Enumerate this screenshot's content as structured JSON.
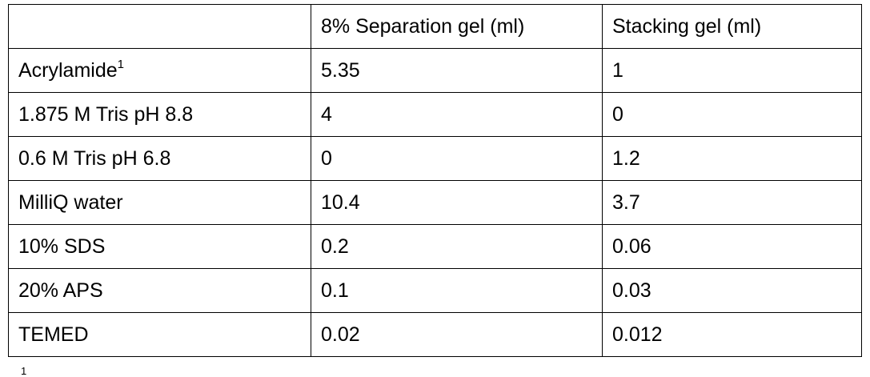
{
  "table": {
    "columns": [
      "8% Separation gel (ml)",
      "Stacking gel (ml)"
    ],
    "rows": [
      {
        "label": "Acrylamide",
        "note": "1",
        "values": [
          5.35,
          1
        ]
      },
      {
        "label": "1.875 M Tris pH 8.8",
        "values": [
          4,
          0
        ]
      },
      {
        "label": "0.6 M Tris pH 6.8",
        "values": [
          0,
          1.2
        ]
      },
      {
        "label": "MilliQ water",
        "values": [
          10.4,
          3.7
        ]
      },
      {
        "label": "10% SDS",
        "values": [
          0.2,
          0.06
        ]
      },
      {
        "label": "20% APS",
        "values": [
          0.1,
          0.03
        ]
      },
      {
        "label": "TEMED",
        "values": [
          0.02,
          0.012
        ]
      }
    ]
  },
  "footnote": "1"
}
